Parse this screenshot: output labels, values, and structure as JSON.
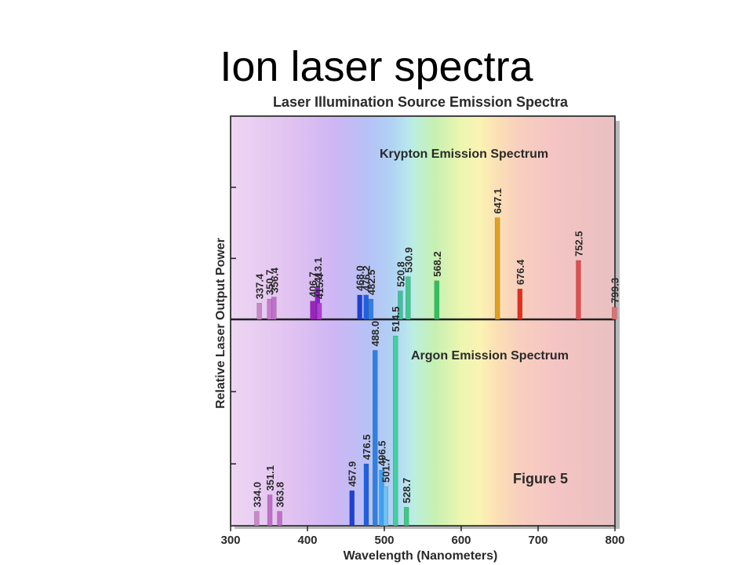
{
  "slide": {
    "title": "Ion laser spectra"
  },
  "chart_data": {
    "type": "bar",
    "title": "Laser Illumination Source Emission Spectra",
    "xlabel": "Wavelength (Nanometers)",
    "ylabel": "Relative Laser Output Power",
    "xlim": [
      300,
      800
    ],
    "x_ticks": [
      "300",
      "400",
      "500",
      "600",
      "700",
      "800"
    ],
    "grid": false,
    "figure_label": "Figure 5",
    "panels": [
      {
        "name": "Krypton Emission Spectrum",
        "lines": [
          {
            "x": 337.4,
            "label": "337.4",
            "value": 0.08,
            "color": "#c889c8"
          },
          {
            "x": 350.7,
            "label": "350.7",
            "value": 0.1,
            "color": "#c47ccb"
          },
          {
            "x": 356.4,
            "label": "356.4",
            "value": 0.11,
            "color": "#c070c8"
          },
          {
            "x": 406.7,
            "label": "406.7",
            "value": 0.09,
            "color": "#a020c0"
          },
          {
            "x": 413.1,
            "label": "413.1",
            "value": 0.16,
            "color": "#8a20c8"
          },
          {
            "x": 415.4,
            "label": "415.4",
            "value": 0.08,
            "color": "#b040c8"
          },
          {
            "x": 468.0,
            "label": "468.0",
            "value": 0.12,
            "color": "#2040d0"
          },
          {
            "x": 476.2,
            "label": "476.2",
            "value": 0.12,
            "color": "#2060e0"
          },
          {
            "x": 482.5,
            "label": "482.5",
            "value": 0.1,
            "color": "#3080e0"
          },
          {
            "x": 520.8,
            "label": "520.8",
            "value": 0.14,
            "color": "#40c0a0"
          },
          {
            "x": 530.9,
            "label": "530.9",
            "value": 0.21,
            "color": "#40c890"
          },
          {
            "x": 568.2,
            "label": "568.2",
            "value": 0.19,
            "color": "#30c060"
          },
          {
            "x": 647.1,
            "label": "647.1",
            "value": 0.5,
            "color": "#e0a020"
          },
          {
            "x": 676.4,
            "label": "676.4",
            "value": 0.15,
            "color": "#e03020"
          },
          {
            "x": 752.5,
            "label": "752.5",
            "value": 0.29,
            "color": "#e05050"
          },
          {
            "x": 799.3,
            "label": "799.3",
            "value": 0.06,
            "color": "#e07070"
          }
        ]
      },
      {
        "name": "Argon Emission Spectrum",
        "lines": [
          {
            "x": 334.0,
            "label": "334.0",
            "value": 0.07,
            "color": "#c889c8"
          },
          {
            "x": 351.1,
            "label": "351.1",
            "value": 0.15,
            "color": "#c070c8"
          },
          {
            "x": 363.8,
            "label": "363.8",
            "value": 0.07,
            "color": "#c070c8"
          },
          {
            "x": 457.9,
            "label": "457.9",
            "value": 0.17,
            "color": "#2040d0"
          },
          {
            "x": 476.5,
            "label": "476.5",
            "value": 0.3,
            "color": "#2060e0"
          },
          {
            "x": 488.0,
            "label": "488.0",
            "value": 0.85,
            "color": "#3080e0"
          },
          {
            "x": 496.5,
            "label": "496.5",
            "value": 0.27,
            "color": "#40a0f0"
          },
          {
            "x": 501.7,
            "label": "501.7",
            "value": 0.19,
            "color": "#70c0f0"
          },
          {
            "x": 514.5,
            "label": "514.5",
            "value": 0.92,
            "color": "#40d0a0"
          },
          {
            "x": 528.7,
            "label": "528.7",
            "value": 0.09,
            "color": "#40c880"
          }
        ]
      }
    ]
  }
}
